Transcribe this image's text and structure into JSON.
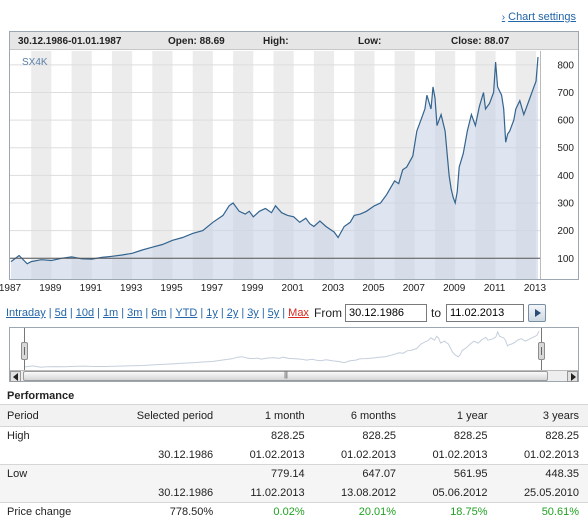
{
  "settings_link": "Chart settings",
  "info_bar": {
    "date_range": "30.12.1986-01.01.1987",
    "open": "Open: 88.69",
    "high": "High:",
    "low": "Low:",
    "close": "Close: 88.07"
  },
  "chart_data": {
    "type": "area",
    "symbol": "SX4K",
    "x_ticks": [
      "1987",
      "1989",
      "1991",
      "1993",
      "1995",
      "1997",
      "1999",
      "2001",
      "2003",
      "2005",
      "2007",
      "2009",
      "2011",
      "2013"
    ],
    "y_ticks": [
      100,
      200,
      300,
      400,
      500,
      600,
      700,
      800
    ],
    "ylim": [
      25,
      850
    ],
    "xlim": [
      1986.95,
      2013.2
    ],
    "baseline": 100,
    "grid": true,
    "x": [
      1987.0,
      1987.4,
      1987.8,
      1988.0,
      1988.5,
      1989.0,
      1989.5,
      1990.0,
      1990.5,
      1991.0,
      1991.5,
      1992.0,
      1992.5,
      1993.0,
      1993.5,
      1994.0,
      1994.5,
      1995.0,
      1995.5,
      1996.0,
      1996.5,
      1997.0,
      1997.5,
      1997.8,
      1998.0,
      1998.3,
      1998.6,
      1998.8,
      1999.0,
      1999.3,
      1999.6,
      1999.9,
      2000.1,
      2000.4,
      2000.7,
      2001.0,
      2001.3,
      2001.6,
      2001.8,
      2002.0,
      2002.3,
      2002.6,
      2002.8,
      2003.0,
      2003.2,
      2003.5,
      2003.8,
      2004.0,
      2004.3,
      2004.6,
      2005.0,
      2005.3,
      2005.6,
      2006.0,
      2006.2,
      2006.4,
      2006.6,
      2006.9,
      2007.1,
      2007.3,
      2007.5,
      2007.6,
      2007.8,
      2007.9,
      2008.0,
      2008.1,
      2008.3,
      2008.5,
      2008.6,
      2008.7,
      2008.8,
      2008.9,
      2009.0,
      2009.1,
      2009.2,
      2009.4,
      2009.6,
      2009.8,
      2010.0,
      2010.2,
      2010.4,
      2010.5,
      2010.7,
      2010.9,
      2011.0,
      2011.1,
      2011.3,
      2011.4,
      2011.5,
      2011.6,
      2011.7,
      2011.9,
      2012.0,
      2012.2,
      2012.4,
      2012.5,
      2012.7,
      2012.9,
      2013.0,
      2013.1
    ],
    "values": [
      88,
      110,
      80,
      88,
      95,
      92,
      100,
      105,
      98,
      97,
      103,
      107,
      112,
      118,
      130,
      140,
      150,
      165,
      175,
      190,
      200,
      230,
      255,
      290,
      300,
      270,
      260,
      270,
      250,
      270,
      280,
      265,
      290,
      265,
      255,
      250,
      230,
      245,
      225,
      215,
      235,
      215,
      205,
      195,
      175,
      215,
      230,
      255,
      260,
      270,
      290,
      300,
      330,
      380,
      370,
      420,
      430,
      470,
      560,
      600,
      640,
      690,
      640,
      720,
      680,
      580,
      620,
      560,
      480,
      400,
      350,
      320,
      300,
      340,
      430,
      480,
      560,
      620,
      580,
      650,
      700,
      640,
      660,
      700,
      810,
      720,
      690,
      640,
      520,
      550,
      560,
      600,
      640,
      670,
      620,
      640,
      680,
      720,
      740,
      828
    ]
  },
  "range_links": [
    "Intraday",
    "5d",
    "10d",
    "1m",
    "3m",
    "6m",
    "YTD",
    "1y",
    "2y",
    "3y",
    "5y",
    "Max"
  ],
  "range_form": {
    "from_label": "From",
    "from_value": "30.12.1986",
    "to_label": "to",
    "to_value": "11.02.2013"
  },
  "performance": {
    "title": "Performance",
    "headers": [
      "Period",
      "Selected period",
      "1 month",
      "6 months",
      "1 year",
      "3 years"
    ],
    "high_label": "High",
    "high_values": [
      "",
      "828.25",
      "828.25",
      "828.25",
      "828.25"
    ],
    "high_dates": [
      "30.12.1986",
      "01.02.2013",
      "01.02.2013",
      "01.02.2013",
      "01.02.2013"
    ],
    "low_label": "Low",
    "low_values": [
      "",
      "779.14",
      "647.07",
      "561.95",
      "448.35"
    ],
    "low_dates": [
      "30.12.1986",
      "11.02.2013",
      "13.08.2012",
      "05.06.2012",
      "25.05.2010"
    ],
    "change_label": "Price change",
    "change_values": [
      "778.50%",
      "0.02%",
      "20.01%",
      "18.75%",
      "50.61%"
    ],
    "positive_color": "#21a122"
  }
}
